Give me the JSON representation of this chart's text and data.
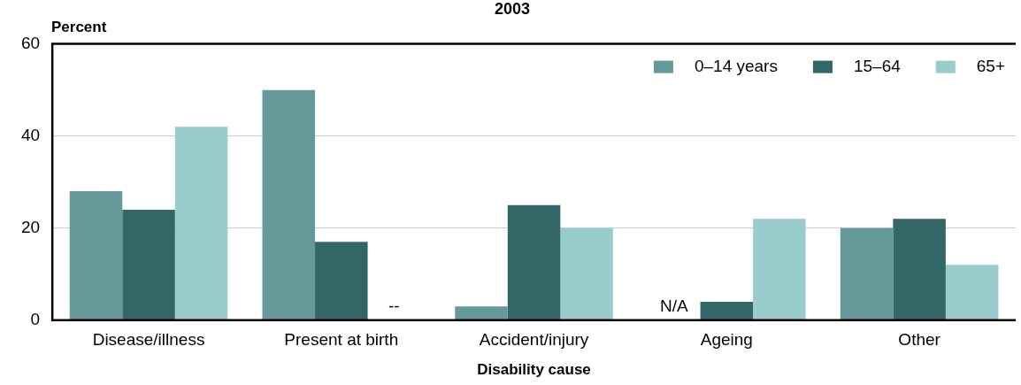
{
  "chart_data": {
    "type": "bar",
    "title": "2003",
    "xlabel": "Disability cause",
    "ylabel": "Percent",
    "categories": [
      "Disease/illness",
      "Present at birth",
      "Accident/injury",
      "Ageing",
      "Other"
    ],
    "series": [
      {
        "name": "0–14 years",
        "color": "#669999",
        "values": [
          28,
          50,
          3,
          null,
          20
        ]
      },
      {
        "name": "15–64",
        "color": "#336666",
        "values": [
          24,
          17,
          25,
          4,
          22
        ]
      },
      {
        "name": "65+",
        "color": "#99cccc",
        "values": [
          42,
          null,
          20,
          22,
          12
        ]
      }
    ],
    "ylim": [
      0,
      60
    ],
    "yticks": [
      0,
      20,
      40,
      60
    ],
    "grid": "y",
    "legend": "top right",
    "annotations": [
      {
        "text": "--",
        "x": "Present at birth",
        "y": 1
      },
      {
        "text": "N/A",
        "x": "Ageing",
        "y": 1
      }
    ]
  }
}
